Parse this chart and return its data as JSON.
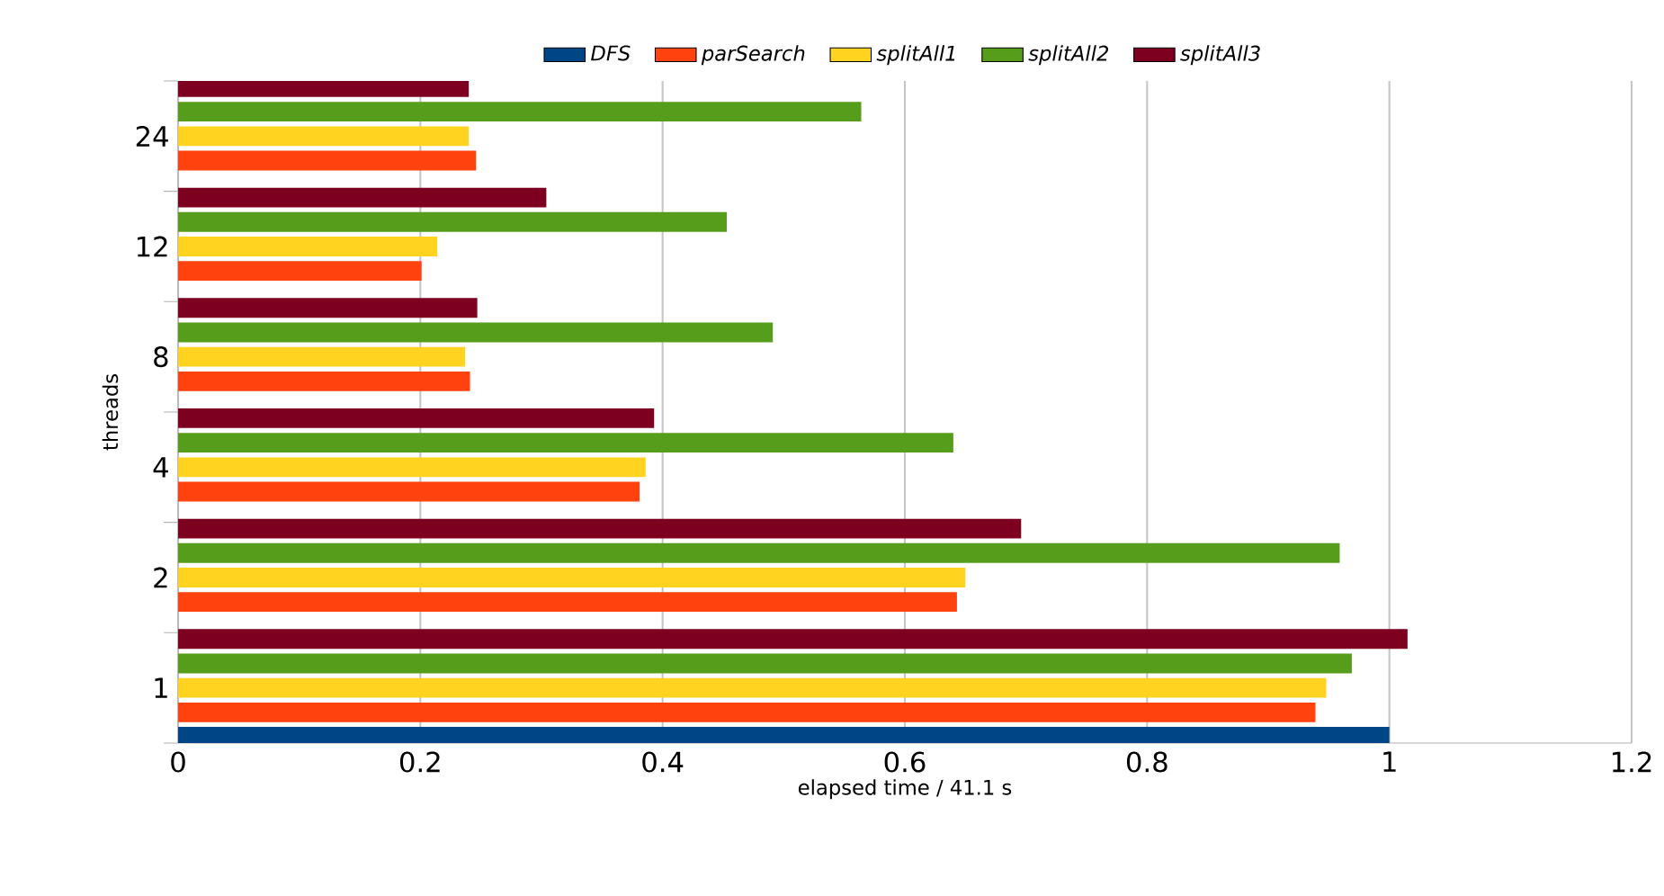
{
  "chart_data": {
    "type": "bar",
    "orientation": "horizontal",
    "xlabel": "elapsed time / 41.1 s",
    "ylabel": "threads",
    "categories": [
      "24",
      "12",
      "8",
      "4",
      "2",
      "1"
    ],
    "series": [
      {
        "name": "DFS",
        "color": "#004586",
        "values": [
          null,
          null,
          null,
          null,
          null,
          1.0
        ]
      },
      {
        "name": "parSearch",
        "color": "#ff420e",
        "values": [
          0.246,
          0.201,
          0.241,
          0.381,
          0.643,
          0.939
        ]
      },
      {
        "name": "splitAll1",
        "color": "#ffd320",
        "values": [
          0.24,
          0.214,
          0.237,
          0.386,
          0.65,
          0.948
        ]
      },
      {
        "name": "splitAll2",
        "color": "#579d1c",
        "values": [
          0.564,
          0.453,
          0.491,
          0.64,
          0.959,
          0.969
        ]
      },
      {
        "name": "splitAll3",
        "color": "#7e0021",
        "values": [
          0.24,
          0.304,
          0.247,
          0.393,
          0.696,
          1.015
        ]
      }
    ],
    "xlim": [
      0,
      1.2
    ],
    "xticks": [
      0,
      0.2,
      0.4,
      0.6,
      0.8,
      1,
      1.2
    ],
    "grid": "x",
    "legend": "top"
  }
}
